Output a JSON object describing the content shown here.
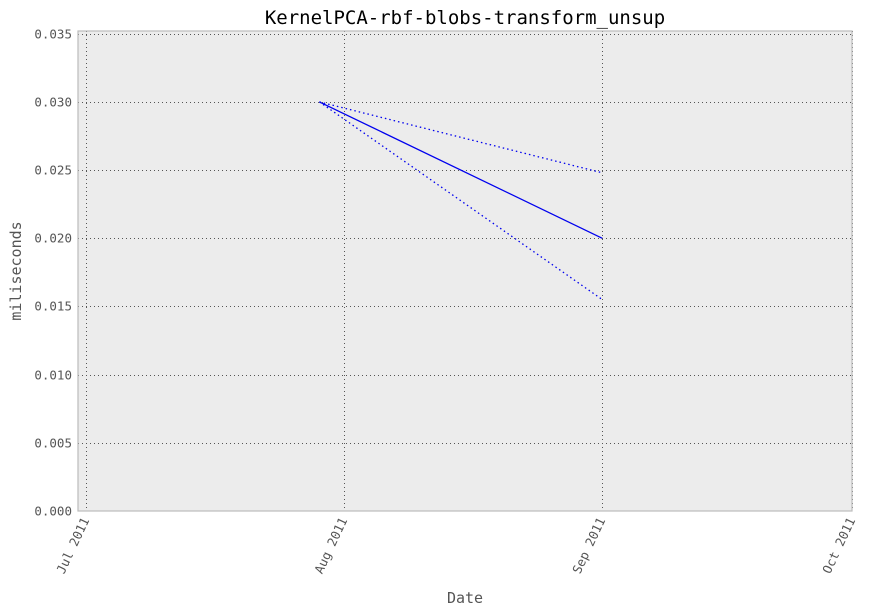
{
  "colors": {
    "plot_background": "#ececec",
    "frame": "#bcbcbc",
    "grid": "#555555",
    "series": "#0000ee"
  },
  "chart_data": {
    "type": "line",
    "title": "KernelPCA-rbf-blobs-transform_unsup",
    "xlabel": "Date",
    "ylabel": "miliseconds",
    "x_axis": {
      "kind": "date",
      "range": [
        "2011-06-30",
        "2011-10-01"
      ],
      "ticks": [
        "2011-07-01",
        "2011-08-01",
        "2011-09-01",
        "2011-10-01"
      ],
      "tick_labels": [
        "Jul 2011",
        "Aug 2011",
        "Sep 2011",
        "Oct 2011"
      ],
      "tick_label_rotation": "rotated about 65 degrees"
    },
    "y_axis": {
      "range": [
        0,
        0.0352
      ],
      "ticks": [
        0,
        0.005,
        0.01,
        0.015,
        0.02,
        0.025,
        0.03,
        0.035
      ],
      "tick_labels": [
        "0.000",
        "0.005",
        "0.010",
        "0.015",
        "0.020",
        "0.025",
        "0.030",
        "0.035"
      ]
    },
    "grid": true,
    "grid_style": "dotted",
    "legend": "none",
    "series": [
      {
        "role": "mean",
        "style": "solid",
        "points": [
          {
            "x": "2011-07-29",
            "y": 0.03
          },
          {
            "x": "2011-09-01",
            "y": 0.02
          }
        ]
      },
      {
        "role": "upper bound",
        "style": "dotted",
        "points": [
          {
            "x": "2011-07-29",
            "y": 0.03
          },
          {
            "x": "2011-09-01",
            "y": 0.0248
          }
        ]
      },
      {
        "role": "lower bound",
        "style": "dotted",
        "points": [
          {
            "x": "2011-07-29",
            "y": 0.03
          },
          {
            "x": "2011-09-01",
            "y": 0.0155
          }
        ]
      }
    ]
  }
}
